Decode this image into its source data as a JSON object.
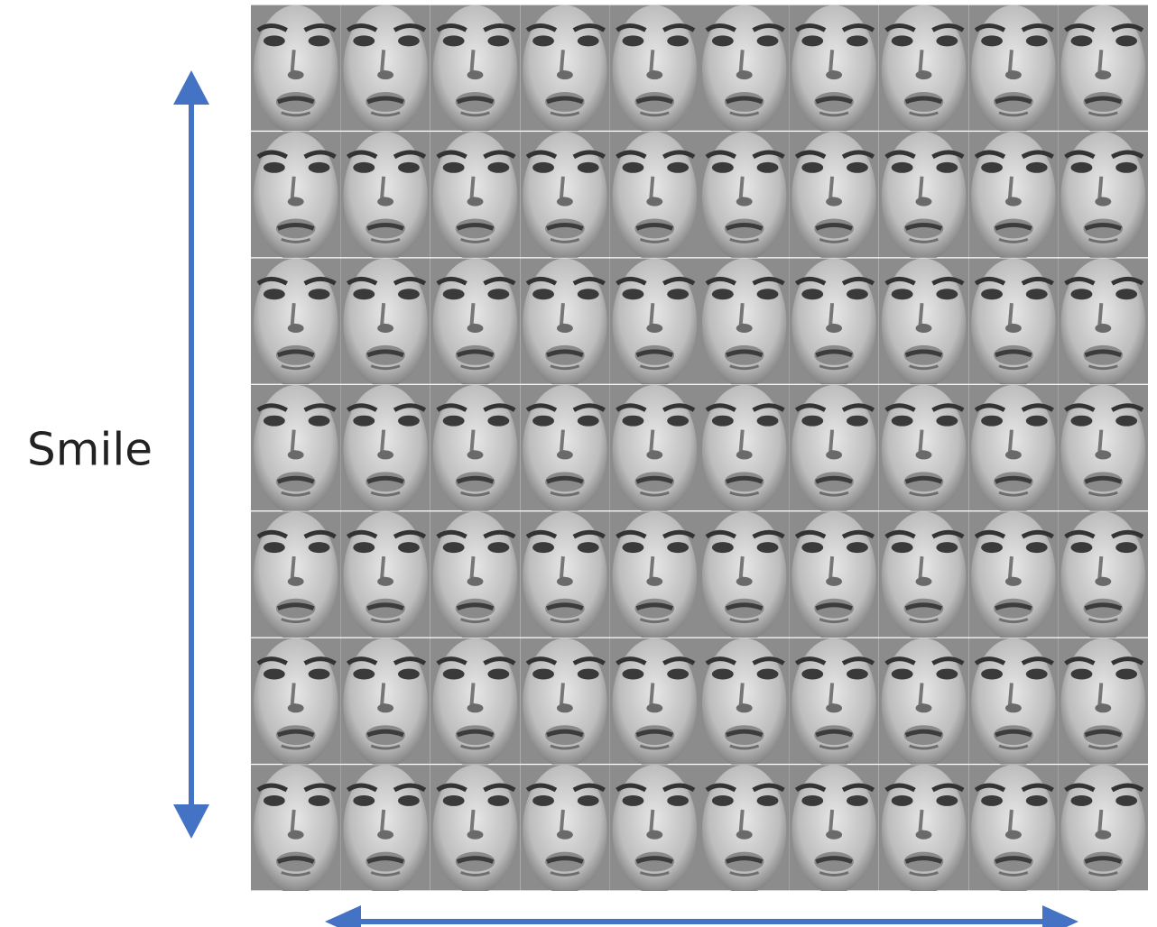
{
  "figure": {
    "label": "Smile"
  }
}
